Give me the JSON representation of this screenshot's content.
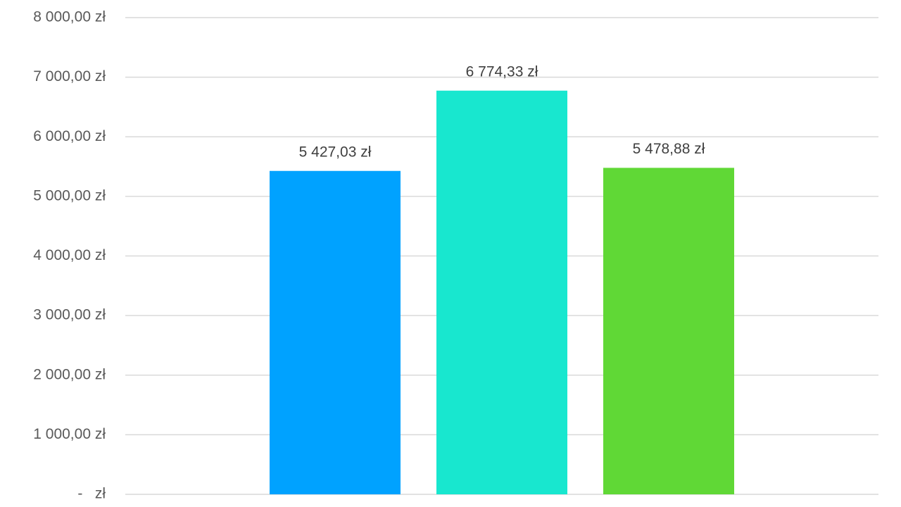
{
  "chart_data": {
    "type": "bar",
    "categories": [
      null,
      null,
      null
    ],
    "values": [
      5427.03,
      6774.33,
      5478.88
    ],
    "value_labels": [
      "5 427,03 zł",
      "6 774,33 zł",
      "5 478,88 zł"
    ],
    "colors": [
      "#00a2ff",
      "#18e7cf",
      "#60d836"
    ],
    "ylim": [
      0,
      8000
    ],
    "yticks": [
      {
        "value": 0,
        "label": "-   zł"
      },
      {
        "value": 1000,
        "label": "1 000,00 zł"
      },
      {
        "value": 2000,
        "label": "2 000,00 zł"
      },
      {
        "value": 3000,
        "label": "3 000,00 zł"
      },
      {
        "value": 4000,
        "label": "4 000,00 zł"
      },
      {
        "value": 5000,
        "label": "5 000,00 zł"
      },
      {
        "value": 6000,
        "label": "6 000,00 zł"
      },
      {
        "value": 7000,
        "label": "7 000,00 zł"
      },
      {
        "value": 8000,
        "label": "8 000,00 zł"
      }
    ],
    "grid": true
  }
}
